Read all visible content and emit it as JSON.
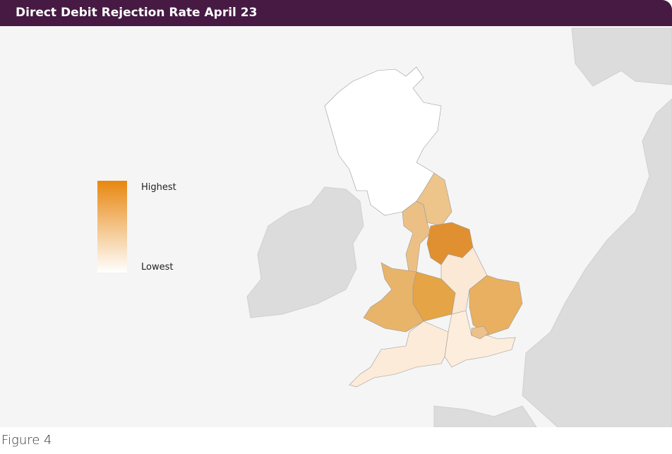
{
  "header": {
    "title": "Direct Debit Rejection Rate April 23"
  },
  "legend": {
    "high": "Highest",
    "low": "Lowest"
  },
  "caption": "Figure 4"
}
